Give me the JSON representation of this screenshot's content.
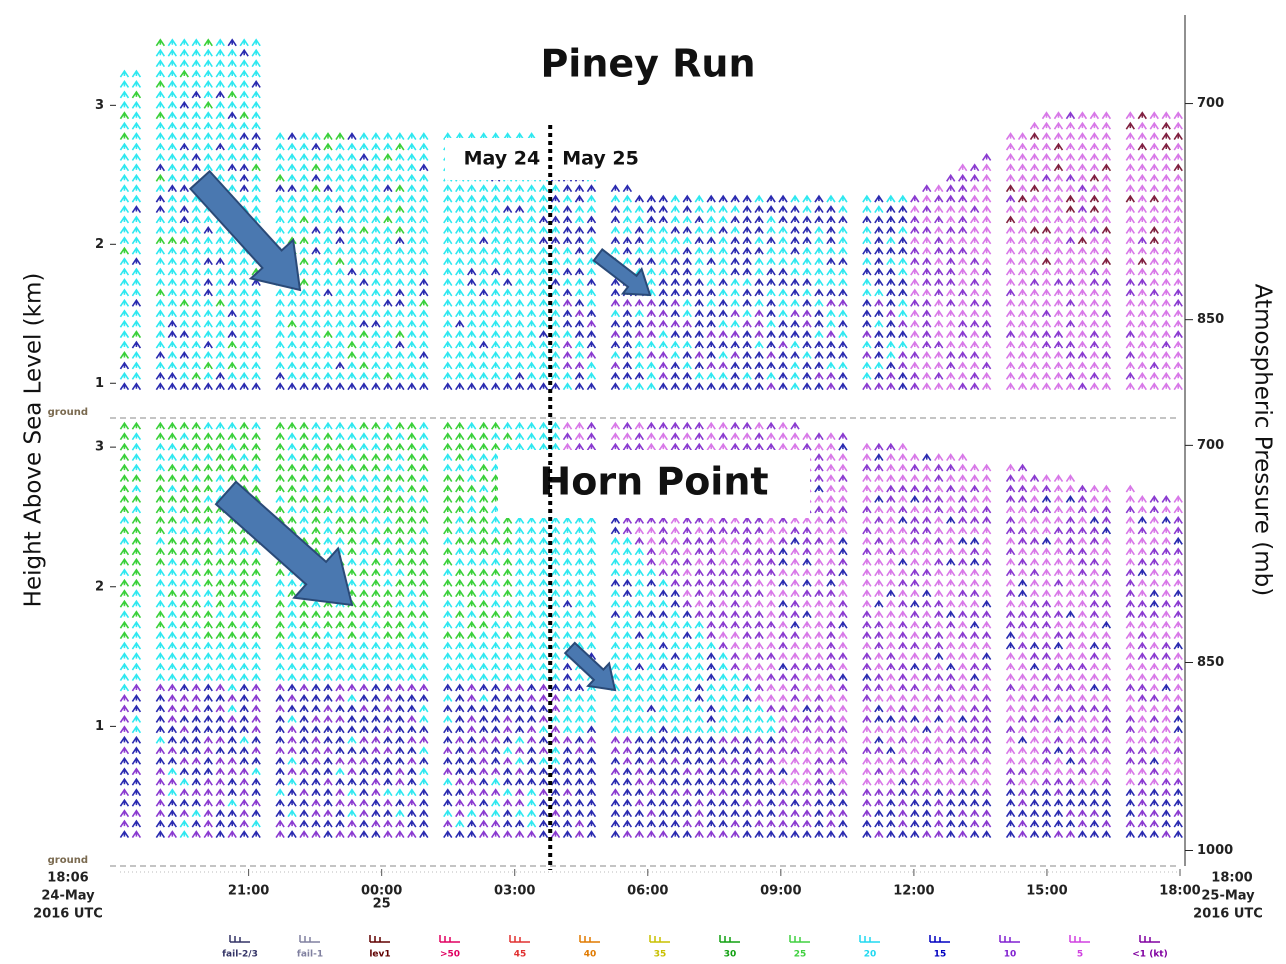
{
  "chart_data": {
    "type": "wind_profile",
    "y_axis_label": "Height Above Sea Level (km)",
    "y2_axis_label": "Atmospheric Pressure (mb)",
    "ground_label": "ground",
    "xlim": [
      18.1,
      42
    ],
    "xticks": [
      {
        "value": 21,
        "label": "21:00"
      },
      {
        "value": 24,
        "label": "00:00",
        "sublabel": "25"
      },
      {
        "value": 27,
        "label": "03:00"
      },
      {
        "value": 30,
        "label": "06:00"
      },
      {
        "value": 33,
        "label": "09:00"
      },
      {
        "value": 36,
        "label": "12:00"
      },
      {
        "value": 39,
        "label": "15:00"
      },
      {
        "value": 42,
        "label": "18:00"
      }
    ],
    "start_label": [
      "18:06",
      "24-May",
      "2016 UTC"
    ],
    "end_label": [
      "18:00",
      "25-May",
      "2016 UTC"
    ],
    "day_boundary": 27.8,
    "date_labels": [
      "May 24",
      "May 25"
    ],
    "panels": [
      {
        "title": "Piney Run",
        "ylim": [
          0.75,
          3.65
        ],
        "yticks": [
          1,
          2,
          3
        ],
        "y2ticks": [
          700,
          850
        ]
      },
      {
        "title": "Horn Point",
        "ylim": [
          0,
          3.18
        ],
        "yticks": [
          1,
          2,
          3
        ],
        "y2ticks": [
          700,
          850,
          1000
        ]
      }
    ],
    "legend": [
      {
        "name": "fail-2/3",
        "color": "#333366"
      },
      {
        "name": "fail-1",
        "color": "#8080a0"
      },
      {
        "name": "lev1",
        "color": "#600000"
      },
      {
        "name": ">50",
        "color": "#e00060"
      },
      {
        "name": "45",
        "color": "#e03030"
      },
      {
        "name": "40",
        "color": "#e07a00"
      },
      {
        "name": "35",
        "color": "#c8c000"
      },
      {
        "name": "30",
        "color": "#10a010"
      },
      {
        "name": "25",
        "color": "#40d040"
      },
      {
        "name": "20",
        "color": "#20d8f0"
      },
      {
        "name": "15",
        "color": "#0000c0"
      },
      {
        "name": "10",
        "color": "#8020d0"
      },
      {
        "name": "5",
        "color": "#d040e0"
      },
      {
        "name": "<1 (kt)",
        "color": "#8000a0"
      }
    ]
  }
}
